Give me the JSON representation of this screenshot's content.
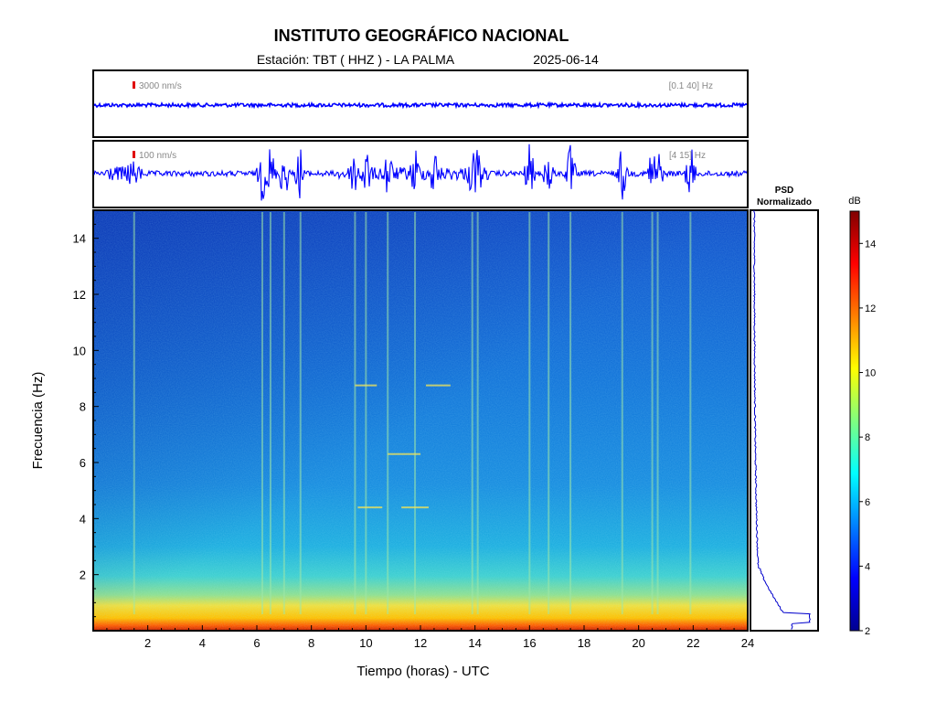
{
  "header": {
    "title": "INSTITUTO GEOGRÁFICO NACIONAL",
    "station": "Estación:  TBT ( HHZ ) - LA PALMA",
    "date": "2025-06-14"
  },
  "chart_data": [
    {
      "type": "line",
      "panel": "seismogram-broadband",
      "scale_label": "3000 nm/s",
      "band_label": "[0.1 40] Hz",
      "trace_color": "#0000ff",
      "scale_marker_color": "#e00000"
    },
    {
      "type": "line",
      "panel": "seismogram-filtered",
      "scale_label": "100 nm/s",
      "band_label": "[4 15] Hz",
      "trace_color": "#0000ff",
      "scale_marker_color": "#e00000",
      "burst_times_h": [
        6.2,
        6.5,
        7.0,
        7.6,
        9.6,
        10.0,
        10.8,
        11.8,
        12.5,
        13.9,
        14.1,
        16.0,
        16.7,
        17.5,
        19.4,
        20.5,
        20.7,
        21.9
      ]
    },
    {
      "type": "heatmap",
      "panel": "spectrogram",
      "xlabel": "Tiempo (horas) - UTC",
      "ylabel": "Frecuencia  (Hz)",
      "xlim": [
        0,
        24
      ],
      "ylim": [
        0,
        15
      ],
      "x_ticks": [
        "2",
        "4",
        "6",
        "8",
        "10",
        "12",
        "14",
        "16",
        "18",
        "20",
        "22",
        "24"
      ],
      "y_ticks": [
        "2",
        "4",
        "6",
        "8",
        "10",
        "12",
        "14"
      ],
      "colormap": "jet",
      "clim": [
        2,
        15
      ],
      "event_stripes_h": [
        1.5,
        6.2,
        6.5,
        7.0,
        7.6,
        9.6,
        10.0,
        10.8,
        11.8,
        13.9,
        14.1,
        16.0,
        16.7,
        17.5,
        19.4,
        20.5,
        20.7,
        21.9
      ]
    },
    {
      "type": "line",
      "panel": "psd",
      "title_line1": "PSD",
      "title_line2": "Normalizado",
      "ylim": [
        0,
        15
      ]
    },
    {
      "type": "heatmap",
      "panel": "colorbar",
      "unit_label": "dB",
      "ticks": [
        "2",
        "4",
        "6",
        "8",
        "10",
        "12",
        "14"
      ],
      "range": [
        2,
        15
      ]
    }
  ]
}
